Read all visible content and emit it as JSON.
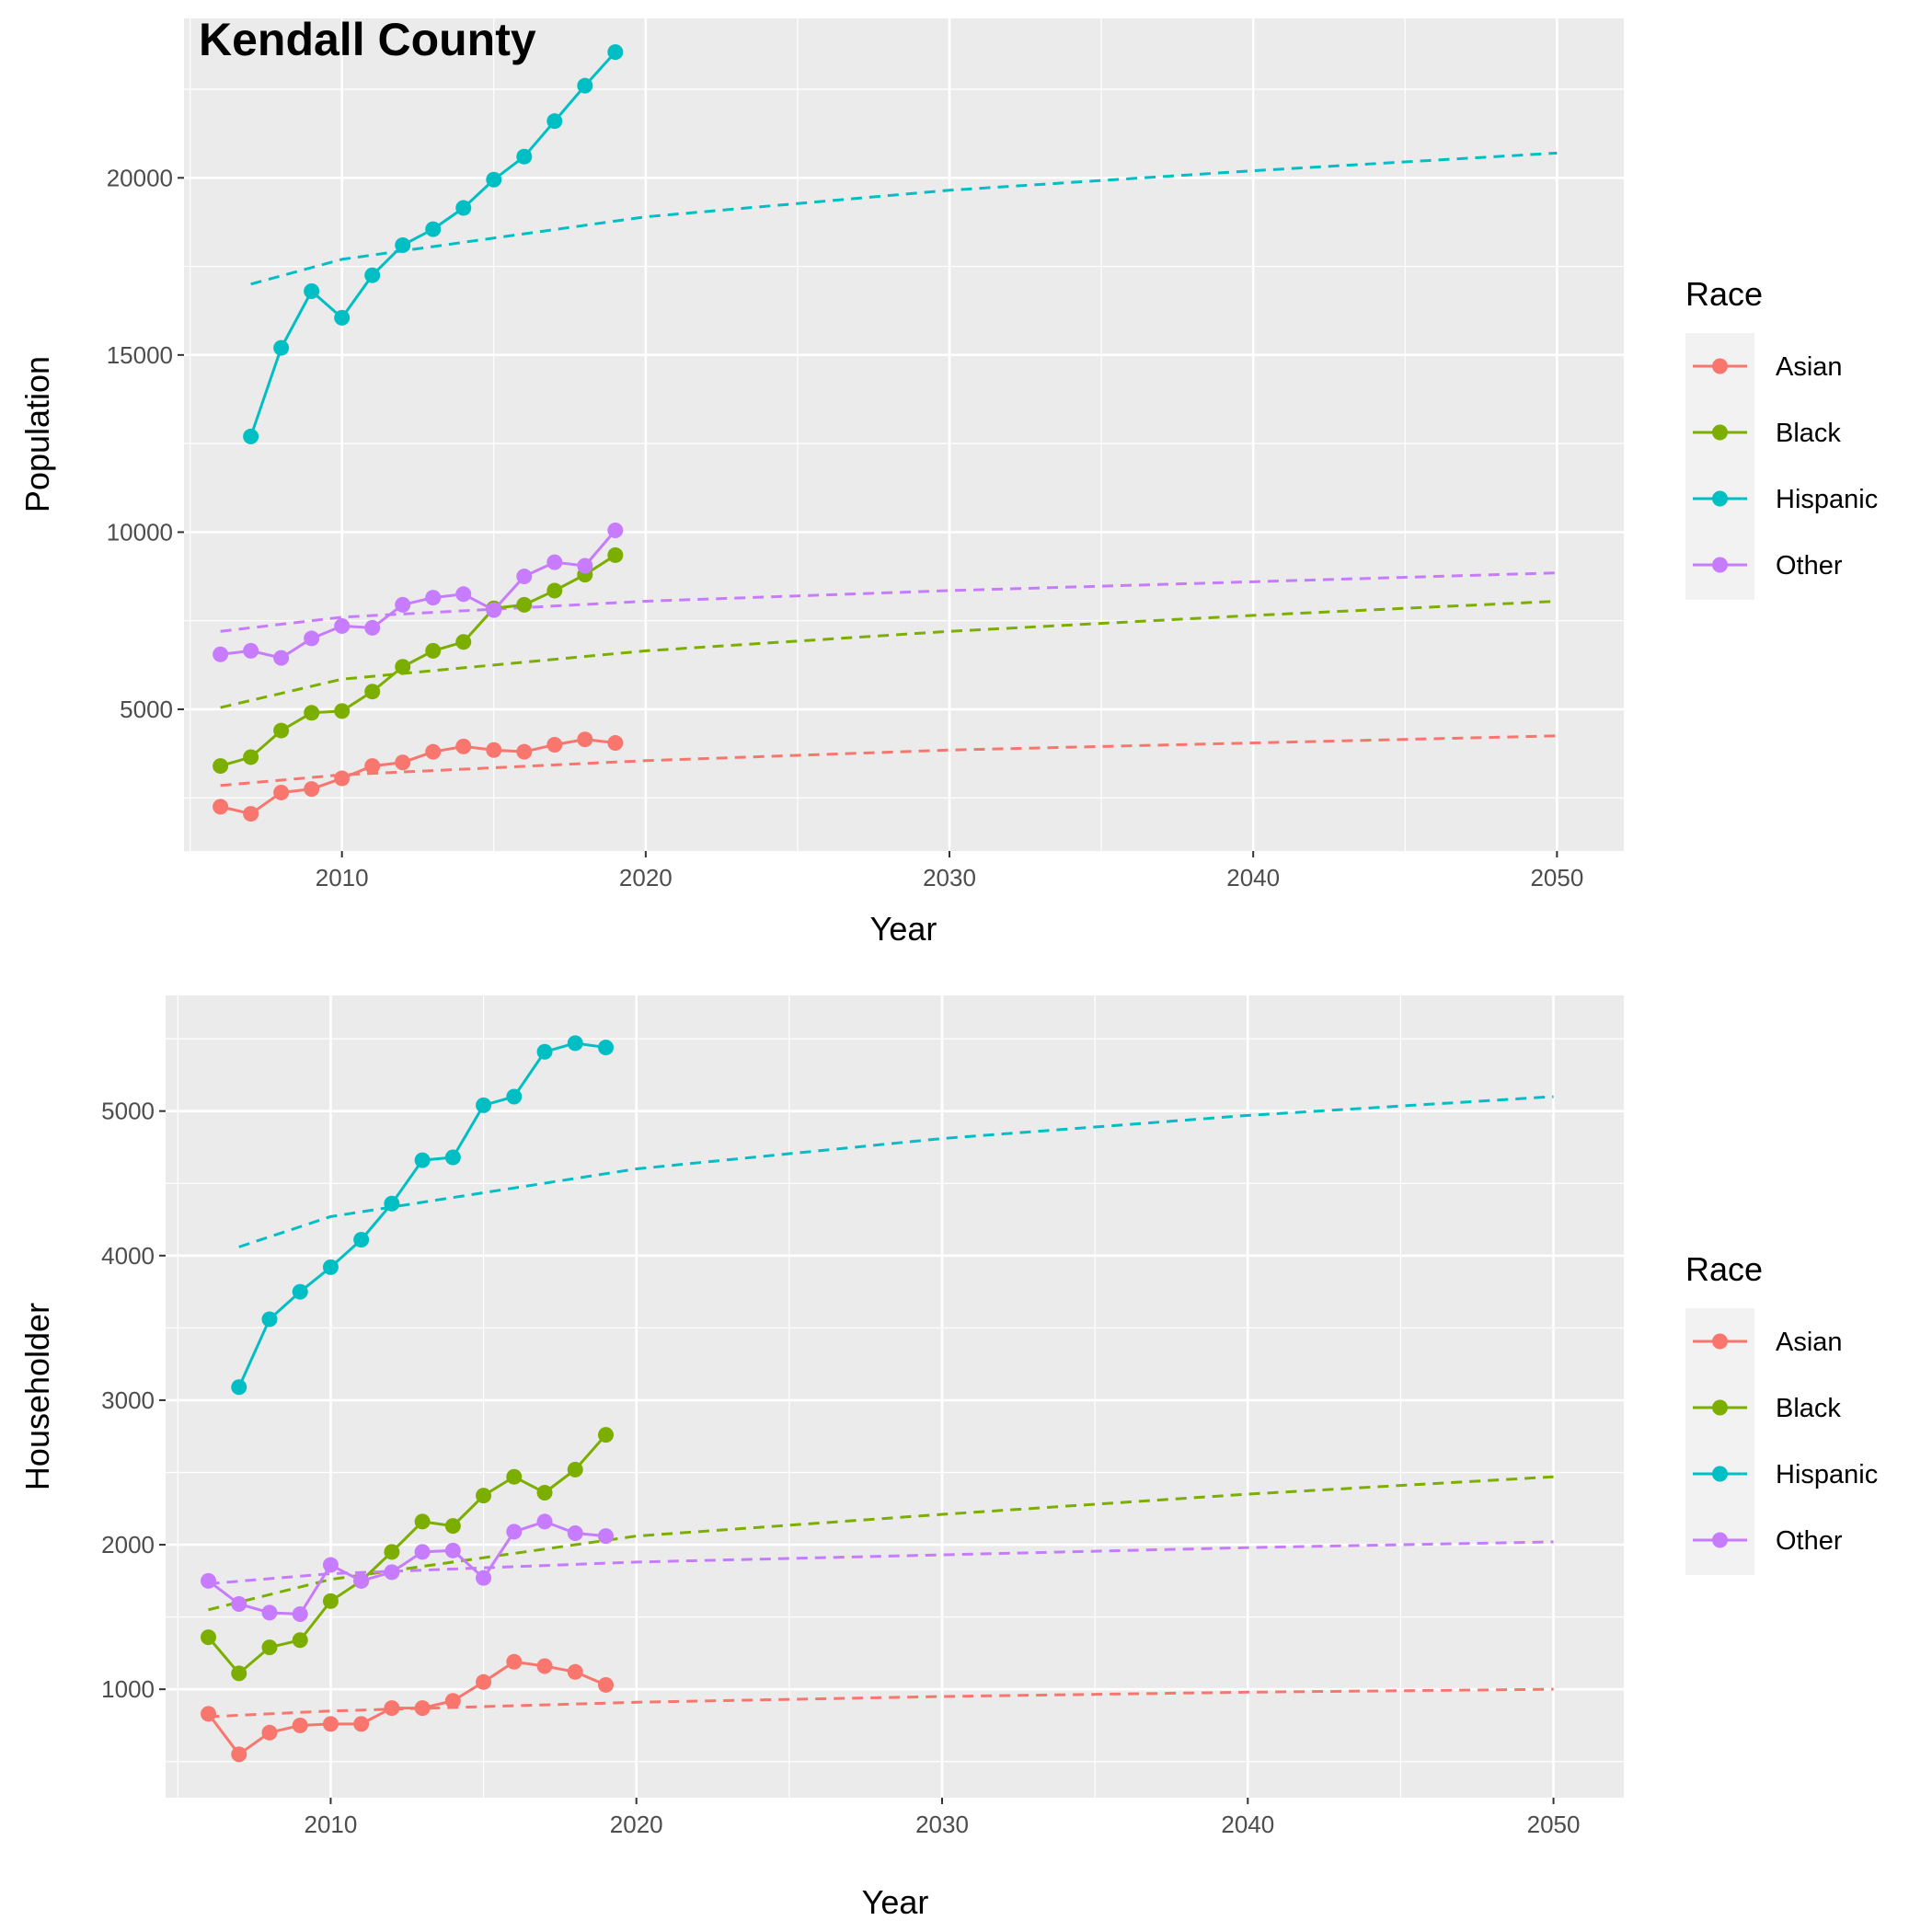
{
  "title": "Kendall County",
  "colors": {
    "Asian": "#F8766D",
    "Black": "#7CAE00",
    "Hispanic": "#00BFC4",
    "Other": "#C77CFF",
    "panel_bg": "#EBEBEB",
    "grid": "#FFFFFF"
  },
  "chart_data": [
    {
      "type": "line",
      "title": "Kendall County",
      "xlabel": "Year",
      "ylabel": "Population",
      "xlim": [
        2004.8,
        2052.2
      ],
      "ylim": [
        1000,
        24500
      ],
      "x_ticks": [
        2010,
        2020,
        2030,
        2040,
        2050
      ],
      "y_ticks": [
        5000,
        10000,
        15000,
        20000
      ],
      "x_tick_labels": [
        "2010",
        "2020",
        "2030",
        "2040",
        "2050"
      ],
      "y_tick_labels": [
        "5000",
        "10000",
        "15000",
        "20000"
      ],
      "grid": true,
      "legend": {
        "title": "Race",
        "position": "right",
        "entries": [
          "Asian",
          "Black",
          "Hispanic",
          "Other"
        ]
      },
      "series": [
        {
          "name": "Asian",
          "kind": "observed",
          "x": [
            2006,
            2007,
            2008,
            2009,
            2010,
            2011,
            2012,
            2013,
            2014,
            2015,
            2016,
            2017,
            2018,
            2019
          ],
          "values": [
            2250,
            2050,
            2650,
            2750,
            3050,
            3400,
            3500,
            3800,
            3950,
            3850,
            3800,
            4000,
            4150,
            4050
          ]
        },
        {
          "name": "Black",
          "kind": "observed",
          "x": [
            2006,
            2007,
            2008,
            2009,
            2010,
            2011,
            2012,
            2013,
            2014,
            2015,
            2016,
            2017,
            2018,
            2019
          ],
          "values": [
            3400,
            3650,
            4400,
            4900,
            4950,
            5500,
            6200,
            6650,
            6900,
            7850,
            7950,
            8350,
            8800,
            9350
          ]
        },
        {
          "name": "Hispanic",
          "kind": "observed",
          "x": [
            2007,
            2008,
            2009,
            2010,
            2011,
            2012,
            2013,
            2014,
            2015,
            2016,
            2017,
            2018,
            2019
          ],
          "values": [
            12700,
            15200,
            16800,
            16050,
            17250,
            18100,
            18550,
            19150,
            19950,
            20600,
            21600,
            22600,
            23550
          ]
        },
        {
          "name": "Other",
          "kind": "observed",
          "x": [
            2006,
            2007,
            2008,
            2009,
            2010,
            2011,
            2012,
            2013,
            2014,
            2015,
            2016,
            2017,
            2018,
            2019
          ],
          "values": [
            6550,
            6650,
            6450,
            7000,
            7350,
            7300,
            7950,
            8150,
            8250,
            7800,
            8750,
            9150,
            9050,
            10050
          ]
        },
        {
          "name": "Asian",
          "kind": "projection",
          "x": [
            2006,
            2010,
            2020,
            2030,
            2040,
            2050
          ],
          "values": [
            2850,
            3150,
            3550,
            3850,
            4050,
            4250
          ]
        },
        {
          "name": "Black",
          "kind": "projection",
          "x": [
            2006,
            2010,
            2020,
            2030,
            2040,
            2050
          ],
          "values": [
            5050,
            5850,
            6650,
            7200,
            7650,
            8050
          ]
        },
        {
          "name": "Hispanic",
          "kind": "projection",
          "x": [
            2007,
            2010,
            2020,
            2030,
            2040,
            2050
          ],
          "values": [
            17000,
            17700,
            18900,
            19650,
            20200,
            20700
          ]
        },
        {
          "name": "Other",
          "kind": "projection",
          "x": [
            2006,
            2010,
            2020,
            2030,
            2040,
            2050
          ],
          "values": [
            7200,
            7600,
            8050,
            8350,
            8600,
            8850
          ]
        }
      ]
    },
    {
      "type": "line",
      "xlabel": "Year",
      "ylabel": "Householder",
      "xlim": [
        2004.6,
        2052.3
      ],
      "ylim": [
        250,
        5800
      ],
      "x_ticks": [
        2010,
        2020,
        2030,
        2040,
        2050
      ],
      "y_ticks": [
        1000,
        2000,
        3000,
        4000,
        5000
      ],
      "x_tick_labels": [
        "2010",
        "2020",
        "2030",
        "2040",
        "2050"
      ],
      "y_tick_labels": [
        "1000",
        "2000",
        "3000",
        "4000",
        "5000"
      ],
      "grid": true,
      "legend": {
        "title": "Race",
        "position": "right",
        "entries": [
          "Asian",
          "Black",
          "Hispanic",
          "Other"
        ]
      },
      "series": [
        {
          "name": "Asian",
          "kind": "observed",
          "x": [
            2006,
            2007,
            2008,
            2009,
            2010,
            2011,
            2012,
            2013,
            2014,
            2015,
            2016,
            2017,
            2018,
            2019
          ],
          "values": [
            830,
            550,
            700,
            750,
            760,
            760,
            870,
            870,
            920,
            1050,
            1190,
            1160,
            1120,
            1030
          ]
        },
        {
          "name": "Black",
          "kind": "observed",
          "x": [
            2006,
            2007,
            2008,
            2009,
            2010,
            2011,
            2012,
            2013,
            2014,
            2015,
            2016,
            2017,
            2018,
            2019
          ],
          "values": [
            1360,
            1110,
            1290,
            1340,
            1610,
            1750,
            1950,
            2160,
            2130,
            2340,
            2470,
            2360,
            2520,
            2760
          ]
        },
        {
          "name": "Hispanic",
          "kind": "observed",
          "x": [
            2007,
            2008,
            2009,
            2010,
            2011,
            2012,
            2013,
            2014,
            2015,
            2016,
            2017,
            2018,
            2019
          ],
          "values": [
            3090,
            3560,
            3750,
            3920,
            4110,
            4360,
            4660,
            4680,
            5040,
            5100,
            5410,
            5470,
            5440
          ]
        },
        {
          "name": "Other",
          "kind": "observed",
          "x": [
            2006,
            2007,
            2008,
            2009,
            2010,
            2011,
            2012,
            2013,
            2014,
            2015,
            2016,
            2017,
            2018,
            2019
          ],
          "values": [
            1750,
            1590,
            1530,
            1520,
            1860,
            1750,
            1810,
            1950,
            1960,
            1770,
            2090,
            2160,
            2080,
            2060
          ]
        },
        {
          "name": "Asian",
          "kind": "projection",
          "x": [
            2006,
            2010,
            2020,
            2030,
            2040,
            2050
          ],
          "values": [
            810,
            850,
            910,
            950,
            980,
            1000
          ]
        },
        {
          "name": "Black",
          "kind": "projection",
          "x": [
            2006,
            2010,
            2020,
            2030,
            2040,
            2050
          ],
          "values": [
            1550,
            1760,
            2060,
            2210,
            2350,
            2470
          ]
        },
        {
          "name": "Hispanic",
          "kind": "projection",
          "x": [
            2007,
            2010,
            2020,
            2030,
            2040,
            2050
          ],
          "values": [
            4060,
            4270,
            4600,
            4810,
            4970,
            5100
          ]
        },
        {
          "name": "Other",
          "kind": "projection",
          "x": [
            2006,
            2010,
            2020,
            2030,
            2040,
            2050
          ],
          "values": [
            1730,
            1800,
            1880,
            1930,
            1980,
            2020
          ]
        }
      ]
    }
  ]
}
